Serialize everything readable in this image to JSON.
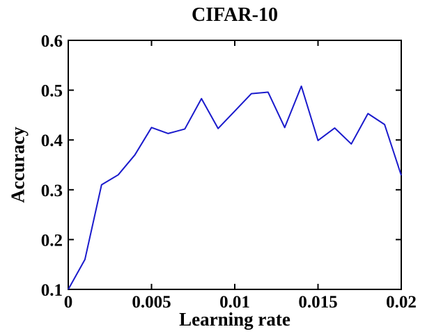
{
  "chart_data": {
    "type": "line",
    "title": "CIFAR-10",
    "xlabel": "Learning rate",
    "ylabel": "Accuracy",
    "x": [
      0,
      0.001,
      0.002,
      0.003,
      0.004,
      0.005,
      0.006,
      0.007,
      0.008,
      0.009,
      0.01,
      0.011,
      0.012,
      0.013,
      0.014,
      0.015,
      0.016,
      0.017,
      0.018,
      0.019,
      0.02
    ],
    "y": [
      0.1,
      0.16,
      0.31,
      0.33,
      0.37,
      0.425,
      0.413,
      0.422,
      0.483,
      0.423,
      0.458,
      0.493,
      0.496,
      0.425,
      0.508,
      0.399,
      0.424,
      0.392,
      0.453,
      0.431,
      0.329
    ],
    "xlim": [
      0,
      0.02
    ],
    "ylim": [
      0.1,
      0.6
    ],
    "xticks": [
      0,
      0.005,
      0.01,
      0.015,
      0.02
    ],
    "xtick_labels": [
      "0",
      "0.005",
      "0.01",
      "0.015",
      "0.02"
    ],
    "yticks": [
      0.1,
      0.2,
      0.3,
      0.4,
      0.5,
      0.6
    ],
    "ytick_labels": [
      "0.1",
      "0.2",
      "0.3",
      "0.4",
      "0.5",
      "0.6"
    ],
    "line_color": "#1a1acc",
    "axis_color": "#000000",
    "grid": false,
    "legend": null
  }
}
